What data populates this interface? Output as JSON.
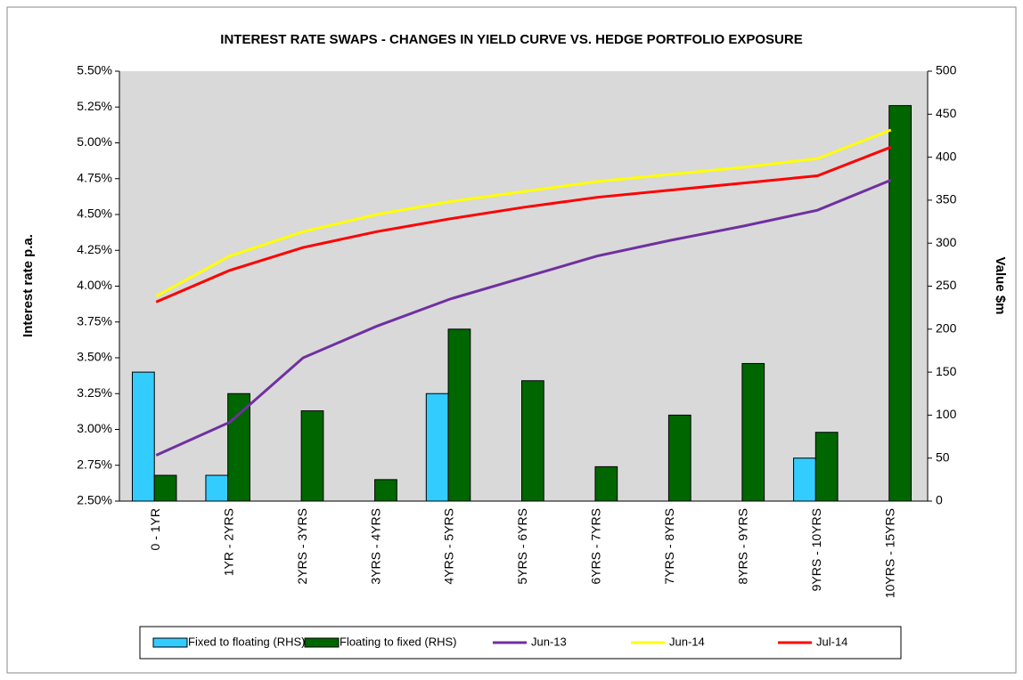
{
  "chart_data": {
    "type": "bar-line",
    "title": "INTEREST RATE SWAPS - CHANGES IN YIELD CURVE VS. HEDGE PORTFOLIO EXPOSURE",
    "y_label": "Interest rate p.a.",
    "y2_label": "Value $m",
    "categories": [
      "0 - 1YR",
      "1YR - 2YRS",
      "2YRS - 3YRS",
      "3YRS - 4YRS",
      "4YRS - 5YRS",
      "5YRS - 6YRS",
      "6YRS - 7YRS",
      "7YRS - 8YRS",
      "8YRS - 9YRS",
      "9YRS - 10YRS",
      "10YRS - 15YRS"
    ],
    "ylim": [
      2.5,
      5.5
    ],
    "yticks": [
      {
        "value": 2.5,
        "label": "2.50%"
      },
      {
        "value": 2.75,
        "label": "2.75%"
      },
      {
        "value": 3,
        "label": "3.00%"
      },
      {
        "value": 3.25,
        "label": "3.25%"
      },
      {
        "value": 3.5,
        "label": "3.50%"
      },
      {
        "value": 3.75,
        "label": "3.75%"
      },
      {
        "value": 4,
        "label": "4.00%"
      },
      {
        "value": 4.25,
        "label": "4.25%"
      },
      {
        "value": 4.5,
        "label": "4.50%"
      },
      {
        "value": 4.75,
        "label": "4.75%"
      },
      {
        "value": 5,
        "label": "5.00%"
      },
      {
        "value": 5.25,
        "label": "5.25%"
      },
      {
        "value": 5.5,
        "label": "5.50%"
      }
    ],
    "y2lim": [
      0,
      500
    ],
    "y2ticks": [
      0,
      50,
      100,
      150,
      200,
      250,
      300,
      350,
      400,
      450,
      500
    ],
    "series": [
      {
        "name": "Fixed to floating (RHS)",
        "type": "bar",
        "axis": "y2",
        "color": "#33ccff",
        "values": [
          150,
          30,
          null,
          null,
          125,
          null,
          null,
          null,
          null,
          50,
          null
        ]
      },
      {
        "name": "Floating to fixed (RHS)",
        "type": "bar",
        "axis": "y2",
        "color": "#006600",
        "values": [
          30,
          125,
          105,
          25,
          200,
          140,
          40,
          100,
          160,
          80,
          460
        ]
      },
      {
        "name": "Jun-13",
        "type": "line",
        "color": "#7030a0",
        "values": [
          2.82,
          3.05,
          3.5,
          3.72,
          3.91,
          4.06,
          4.21,
          4.32,
          4.42,
          4.53,
          4.74
        ]
      },
      {
        "name": "Jun-14",
        "type": "line",
        "color": "#ffff00",
        "values": [
          3.93,
          4.21,
          4.38,
          4.5,
          4.59,
          4.66,
          4.73,
          4.78,
          4.83,
          4.89,
          5.09
        ]
      },
      {
        "name": "Jul-14",
        "type": "line",
        "color": "#ff0000",
        "values": [
          3.89,
          4.11,
          4.27,
          4.38,
          4.47,
          4.55,
          4.62,
          4.67,
          4.72,
          4.77,
          4.97
        ]
      }
    ]
  }
}
